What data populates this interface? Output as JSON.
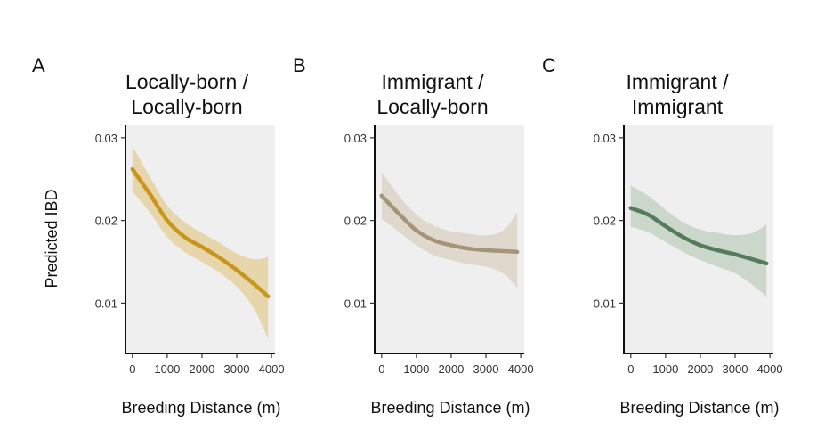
{
  "chart_data": [
    {
      "type": "line",
      "panel_label": "A",
      "title_lines": [
        "Locally-born /",
        "Locally-born"
      ],
      "xlabel": "Breeding Distance (m)",
      "ylabel": "Predicted IBD",
      "xlim": [
        -200,
        4100
      ],
      "ylim": [
        0.0039,
        0.0316
      ],
      "xticks": [
        0,
        1000,
        2000,
        3000,
        4000
      ],
      "xtick_labels": [
        "0",
        "1000",
        "2000",
        "3000",
        "4000"
      ],
      "yticks": [
        0.01,
        0.02,
        0.03
      ],
      "ytick_labels": [
        "0.01",
        "0.02",
        "0.03"
      ],
      "line_color": "#C8961A",
      "band_color": "#E5D1A3",
      "series": [
        {
          "name": "fit",
          "x": [
            0,
            500,
            1000,
            1500,
            2000,
            2500,
            3000,
            3500,
            3900
          ],
          "y": [
            0.0262,
            0.0232,
            0.02,
            0.018,
            0.0168,
            0.0155,
            0.014,
            0.0123,
            0.0108
          ]
        },
        {
          "name": "upper",
          "x": [
            0,
            500,
            1000,
            1500,
            2000,
            2500,
            3000,
            3500,
            3900
          ],
          "y": [
            0.029,
            0.0253,
            0.0218,
            0.0198,
            0.0185,
            0.0173,
            0.016,
            0.0153,
            0.0156
          ]
        },
        {
          "name": "lower",
          "x": [
            0,
            500,
            1000,
            1500,
            2000,
            2500,
            3000,
            3500,
            3900
          ],
          "y": [
            0.0235,
            0.021,
            0.018,
            0.0162,
            0.015,
            0.0137,
            0.012,
            0.0093,
            0.0057
          ]
        }
      ]
    },
    {
      "type": "line",
      "panel_label": "B",
      "title_lines": [
        "Immigrant /",
        "Locally-born"
      ],
      "xlabel": "Breeding Distance (m)",
      "ylabel": "",
      "xlim": [
        -200,
        4100
      ],
      "ylim": [
        0.0039,
        0.0316
      ],
      "xticks": [
        0,
        1000,
        2000,
        3000,
        4000
      ],
      "xtick_labels": [
        "0",
        "1000",
        "2000",
        "3000",
        "4000"
      ],
      "yticks": [
        0.01,
        0.02,
        0.03
      ],
      "ytick_labels": [
        "0.01",
        "0.02",
        "0.03"
      ],
      "line_color": "#A59478",
      "band_color": "#DDD6C9",
      "series": [
        {
          "name": "fit",
          "x": [
            0,
            500,
            1000,
            1500,
            2000,
            2500,
            3000,
            3500,
            3900
          ],
          "y": [
            0.023,
            0.0208,
            0.0188,
            0.0176,
            0.017,
            0.0166,
            0.0164,
            0.0163,
            0.0162
          ]
        },
        {
          "name": "upper",
          "x": [
            0,
            500,
            1000,
            1500,
            2000,
            2500,
            3000,
            3500,
            3900
          ],
          "y": [
            0.0259,
            0.023,
            0.0207,
            0.0194,
            0.0187,
            0.0184,
            0.0182,
            0.0188,
            0.021
          ]
        },
        {
          "name": "lower",
          "x": [
            0,
            500,
            1000,
            1500,
            2000,
            2500,
            3000,
            3500,
            3900
          ],
          "y": [
            0.0202,
            0.0186,
            0.017,
            0.0158,
            0.0152,
            0.0147,
            0.0144,
            0.0136,
            0.0118
          ]
        }
      ]
    },
    {
      "type": "line",
      "panel_label": "C",
      "title_lines": [
        "Immigrant /",
        "Immigrant"
      ],
      "xlabel": "Breeding Distance (m)",
      "ylabel": "",
      "xlim": [
        -200,
        4100
      ],
      "ylim": [
        0.0039,
        0.0316
      ],
      "xticks": [
        0,
        1000,
        2000,
        3000,
        4000
      ],
      "xtick_labels": [
        "0",
        "1000",
        "2000",
        "3000",
        "4000"
      ],
      "yticks": [
        0.01,
        0.02,
        0.03
      ],
      "ytick_labels": [
        "0.01",
        "0.02",
        "0.03"
      ],
      "line_color": "#567B5C",
      "band_color": "#C8D4C8",
      "series": [
        {
          "name": "fit",
          "x": [
            0,
            500,
            1000,
            1500,
            2000,
            2500,
            3000,
            3500,
            3900
          ],
          "y": [
            0.0215,
            0.0207,
            0.0193,
            0.018,
            0.017,
            0.0164,
            0.0159,
            0.0153,
            0.0148
          ]
        },
        {
          "name": "upper",
          "x": [
            0,
            500,
            1000,
            1500,
            2000,
            2500,
            3000,
            3500,
            3900
          ],
          "y": [
            0.0242,
            0.023,
            0.0213,
            0.0198,
            0.0189,
            0.0185,
            0.0182,
            0.0185,
            0.0195
          ]
        },
        {
          "name": "lower",
          "x": [
            0,
            500,
            1000,
            1500,
            2000,
            2500,
            3000,
            3500,
            3900
          ],
          "y": [
            0.0192,
            0.0186,
            0.0174,
            0.0162,
            0.0152,
            0.0144,
            0.0136,
            0.0122,
            0.0108
          ]
        }
      ]
    }
  ]
}
